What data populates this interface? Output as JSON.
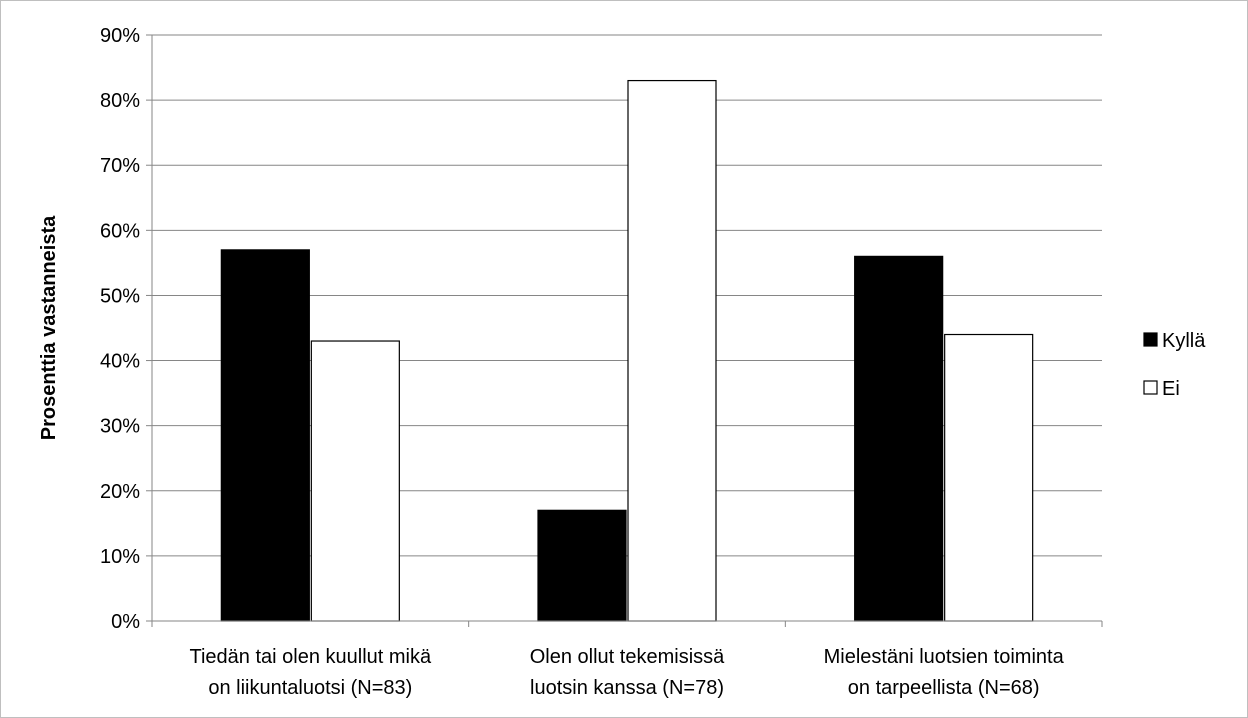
{
  "chart_data": {
    "type": "bar",
    "categories": [
      [
        "Tiedän tai olen kuullut mikä",
        "on liikuntaluotsi (N=83)"
      ],
      [
        "Olen ollut tekemisissä",
        "luotsin kanssa (N=78)"
      ],
      [
        "Mielestäni luotsien toiminta",
        "on tarpeellista (N=68)"
      ]
    ],
    "series": [
      {
        "name": "Kyllä",
        "values": [
          57,
          17,
          56
        ],
        "color": "#000000"
      },
      {
        "name": "Ei",
        "values": [
          43,
          83,
          44
        ],
        "color": "#ffffff"
      }
    ],
    "ylabel": "Prosenttia vastanneista",
    "ylim": [
      0,
      90
    ],
    "yticks": [
      0,
      10,
      20,
      30,
      40,
      50,
      60,
      70,
      80,
      90
    ],
    "ytick_format": "%",
    "grid": true,
    "legend_position": "right"
  }
}
